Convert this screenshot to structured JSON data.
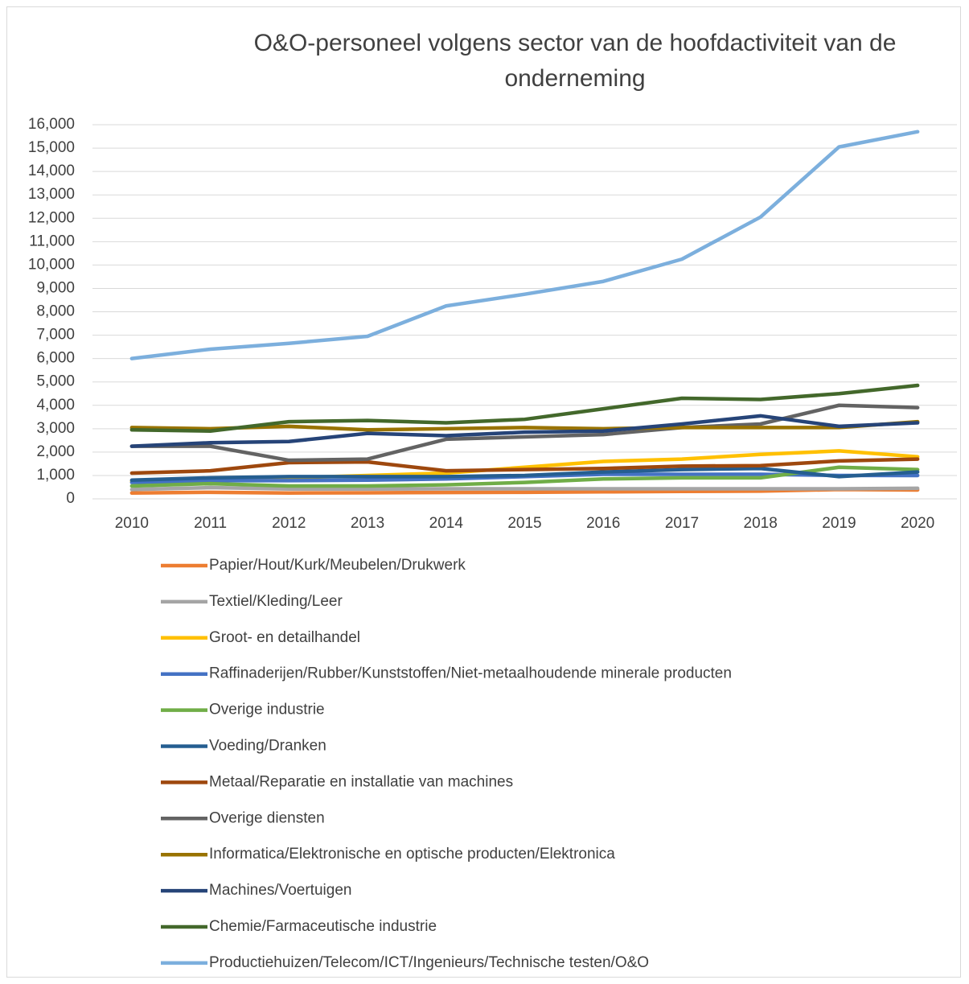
{
  "chart_data": {
    "type": "line",
    "title": "O&O-personeel volgens sector van de hoofdactiviteit van de onderneming",
    "categories": [
      "2010",
      "2011",
      "2012",
      "2013",
      "2014",
      "2015",
      "2016",
      "2017",
      "2018",
      "2019",
      "2020"
    ],
    "ylim": [
      0,
      16000
    ],
    "yticks": [
      0,
      {
        "value": 1000,
        "label": "1,000"
      },
      {
        "value": 2000,
        "label": "2,000"
      },
      {
        "value": 3000,
        "label": "3,000"
      },
      {
        "value": 4000,
        "label": "4,000"
      },
      {
        "value": 5000,
        "label": "5,000"
      },
      {
        "value": 6000,
        "label": "6,000"
      },
      {
        "value": 7000,
        "label": "7,000"
      },
      {
        "value": 8000,
        "label": "8,000"
      },
      {
        "value": 9000,
        "label": "9,000"
      },
      {
        "value": 10000,
        "label": "10,000"
      },
      {
        "value": 11000,
        "label": "11,000"
      },
      {
        "value": 12000,
        "label": "12,000"
      },
      {
        "value": 13000,
        "label": "13,000"
      },
      {
        "value": 14000,
        "label": "14,000"
      },
      {
        "value": 15000,
        "label": "15,000"
      },
      {
        "value": 16000,
        "label": "16,000"
      }
    ],
    "grid": true,
    "legend": "bottom",
    "series": [
      {
        "name": "Papier/Hout/Kurk/Meubelen/Drukwerk",
        "color": "#ED7D31",
        "values": [
          250,
          280,
          250,
          260,
          270,
          280,
          300,
          320,
          330,
          400,
          380
        ]
      },
      {
        "name": "Textiel/Kleding/Leer",
        "color": "#A5A5A5",
        "values": [
          400,
          480,
          420,
          420,
          430,
          430,
          430,
          430,
          430,
          430,
          450
        ]
      },
      {
        "name": "Groot- en detailhandel",
        "color": "#FFC000",
        "values": [
          750,
          850,
          900,
          1000,
          1100,
          1350,
          1600,
          1700,
          1900,
          2050,
          1800
        ]
      },
      {
        "name": "Raffinaderijen/Rubber/Kunststoffen/Niet-metaalhoudende minerale producten",
        "color": "#4472C4",
        "values": [
          700,
          780,
          780,
          800,
          850,
          950,
          1050,
          1050,
          1050,
          1000,
          1000
        ]
      },
      {
        "name": "Overige industrie",
        "color": "#70AD47",
        "values": [
          550,
          650,
          550,
          550,
          600,
          700,
          850,
          900,
          900,
          1350,
          1250
        ]
      },
      {
        "name": "Voeding/Dranken",
        "color": "#255E91",
        "values": [
          800,
          900,
          950,
          950,
          950,
          1000,
          1150,
          1250,
          1300,
          950,
          1150
        ]
      },
      {
        "name": "Metaal/Reparatie en installatie van machines",
        "color": "#9E480E",
        "values": [
          1100,
          1200,
          1550,
          1580,
          1200,
          1250,
          1300,
          1400,
          1420,
          1620,
          1700
        ]
      },
      {
        "name": "Overige diensten",
        "color": "#636363",
        "values": [
          2250,
          2250,
          1650,
          1700,
          2550,
          2650,
          2750,
          3050,
          3200,
          4000,
          3900
        ]
      },
      {
        "name": "Informatica/Elektronische en optische producten/Elektronica",
        "color": "#997300",
        "values": [
          3050,
          3000,
          3100,
          2950,
          3000,
          3050,
          3000,
          3050,
          3050,
          3050,
          3300
        ]
      },
      {
        "name": "Machines/Voertuigen",
        "color": "#264478",
        "values": [
          2250,
          2400,
          2450,
          2800,
          2700,
          2850,
          2900,
          3200,
          3550,
          3100,
          3250
        ]
      },
      {
        "name": "Chemie/Farmaceutische industrie",
        "color": "#43682B",
        "values": [
          2950,
          2900,
          3300,
          3350,
          3250,
          3400,
          3850,
          4300,
          4250,
          4500,
          4850
        ]
      },
      {
        "name": "Productiehuizen/Telecom/ICT/Ingenieurs/Technische testen/O&O",
        "color": "#7CAFDD",
        "values": [
          6000,
          6400,
          6650,
          6950,
          8250,
          8750,
          9300,
          10250,
          12050,
          15050,
          15700
        ]
      }
    ]
  }
}
